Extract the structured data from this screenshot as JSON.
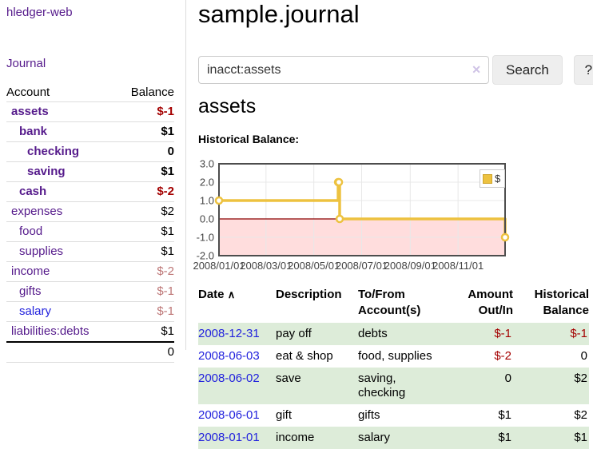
{
  "app": {
    "title": "hledger-web"
  },
  "sidebar": {
    "journal_link": "Journal",
    "table": {
      "account_header": "Account",
      "balance_header": "Balance",
      "rows": [
        {
          "account": "assets",
          "balance": "$-1",
          "depth": 1,
          "bold": true,
          "neg": "strong",
          "link": "purple"
        },
        {
          "account": "bank",
          "balance": "$1",
          "depth": 2,
          "bold": true,
          "neg": null,
          "link": "purple"
        },
        {
          "account": "checking",
          "balance": "0",
          "depth": 3,
          "bold": true,
          "neg": null,
          "link": "purple"
        },
        {
          "account": "saving",
          "balance": "$1",
          "depth": 3,
          "bold": true,
          "neg": null,
          "link": "purple"
        },
        {
          "account": "cash",
          "balance": "$-2",
          "depth": 2,
          "bold": true,
          "neg": "strong",
          "link": "purple"
        },
        {
          "account": "expenses",
          "balance": "$2",
          "depth": 1,
          "bold": false,
          "neg": null,
          "link": "purple"
        },
        {
          "account": "food",
          "balance": "$1",
          "depth": 2,
          "bold": false,
          "neg": null,
          "link": "purple"
        },
        {
          "account": "supplies",
          "balance": "$1",
          "depth": 2,
          "bold": false,
          "neg": null,
          "link": "purple"
        },
        {
          "account": "income",
          "balance": "$-2",
          "depth": 1,
          "bold": false,
          "neg": "muted",
          "link": "purple"
        },
        {
          "account": "gifts",
          "balance": "$-1",
          "depth": 2,
          "bold": false,
          "neg": "muted",
          "link": "purple"
        },
        {
          "account": "salary",
          "balance": "$-1",
          "depth": 2,
          "bold": false,
          "neg": "muted",
          "link": "blue"
        },
        {
          "account": "liabilities:debts",
          "balance": "$1",
          "depth": 1,
          "bold": false,
          "neg": null,
          "link": "purple"
        }
      ],
      "total": "0"
    }
  },
  "main": {
    "title": "sample.journal",
    "search": {
      "value": "inacct:assets",
      "clear_icon": "✕",
      "button_label": "Search",
      "help_label": "?"
    },
    "account_heading": "assets",
    "chart_label": "Historical Balance:"
  },
  "chart_data": {
    "type": "line",
    "style": "step",
    "title": "Historical Balance:",
    "series": [
      {
        "name": "$",
        "color": "#edc240",
        "points": [
          [
            "2008-01-01",
            1
          ],
          [
            "2008-06-01",
            2
          ],
          [
            "2008-06-02",
            2
          ],
          [
            "2008-06-03",
            0
          ],
          [
            "2008-12-31",
            -1
          ]
        ]
      }
    ],
    "x_range": [
      "2008-01-01",
      "2008-12-31"
    ],
    "x_ticks": [
      "2008/01/01",
      "2008/03/01",
      "2008/05/01",
      "2008/07/01",
      "2008/09/01",
      "2008/11/01"
    ],
    "y_ticks": [
      3.0,
      2.0,
      1.0,
      0.0,
      -1.0,
      -2.0
    ],
    "ylim": [
      -2,
      3
    ],
    "grid": true,
    "legend_position": "top-right",
    "negative_region_color": "#ffdddd",
    "zero_line_color": "#8b0000",
    "border_color": "#4d4d4d",
    "grid_color": "#e8e8e8"
  },
  "register": {
    "headers": {
      "date": "Date",
      "sort_icon": "∧",
      "description": "Description",
      "accounts": "To/From Account(s)",
      "amount": "Amount Out/In",
      "balance": "Historical Balance"
    },
    "rows": [
      {
        "date": "2008-12-31",
        "description": "pay off",
        "accounts": "debts",
        "amount": "$-1",
        "balance": "$-1",
        "amount_neg": true,
        "balance_neg": true
      },
      {
        "date": "2008-06-03",
        "description": "eat & shop",
        "accounts": "food, supplies",
        "amount": "$-2",
        "balance": "0",
        "amount_neg": true,
        "balance_neg": false
      },
      {
        "date": "2008-06-02",
        "description": "save",
        "accounts": "saving, checking",
        "amount": "0",
        "balance": "$2",
        "amount_neg": false,
        "balance_neg": false
      },
      {
        "date": "2008-06-01",
        "description": "gift",
        "accounts": "gifts",
        "amount": "$1",
        "balance": "$2",
        "amount_neg": false,
        "balance_neg": false
      },
      {
        "date": "2008-01-01",
        "description": "income",
        "accounts": "salary",
        "amount": "$1",
        "balance": "$1",
        "amount_neg": false,
        "balance_neg": false
      }
    ]
  }
}
